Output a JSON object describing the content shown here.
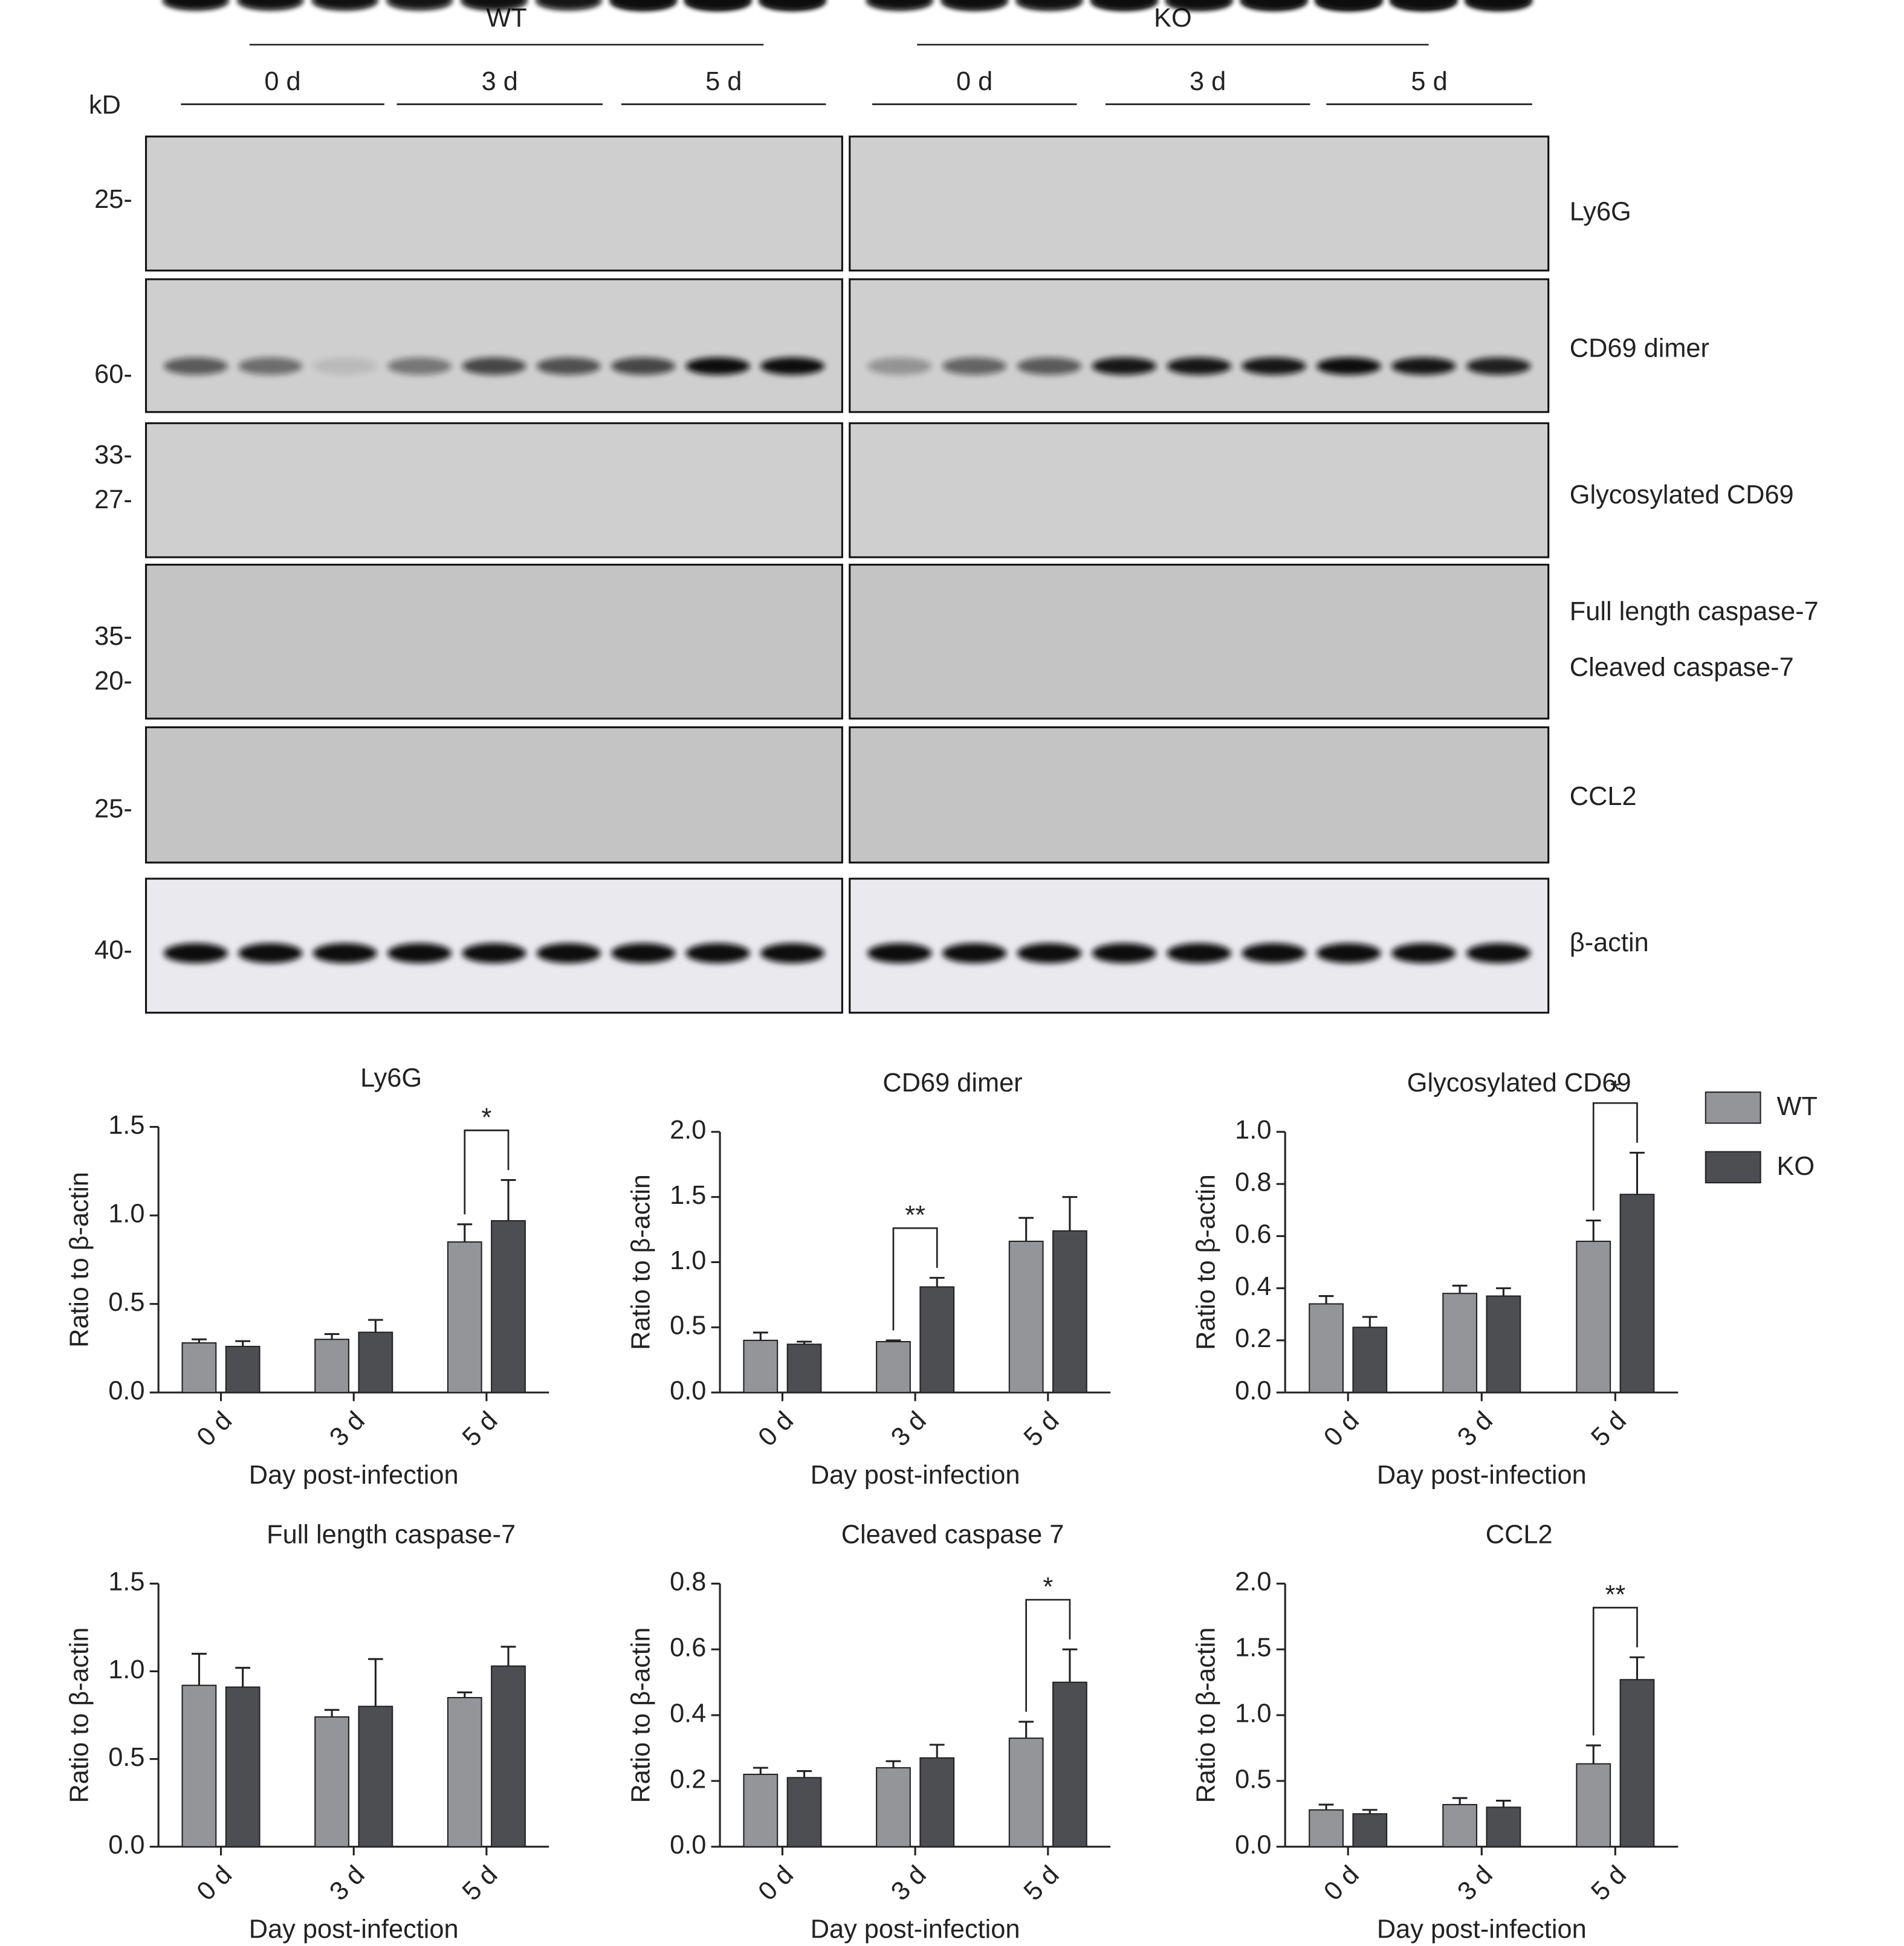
{
  "blot": {
    "unit": "kD",
    "groups": [
      {
        "label": "WT",
        "days": [
          "0 d",
          "3 d",
          "5 d"
        ]
      },
      {
        "label": "KO",
        "days": [
          "0 d",
          "3 d",
          "5 d"
        ]
      }
    ],
    "rows": [
      {
        "proteins": [
          "Ly6G"
        ],
        "markers": [
          "25-"
        ]
      },
      {
        "proteins": [
          "CD69 dimer"
        ],
        "markers": [
          "60-"
        ]
      },
      {
        "proteins": [
          "Glycosylated CD69"
        ],
        "markers": [
          "33-",
          "27-"
        ]
      },
      {
        "proteins": [
          "Full length caspase-7",
          "Cleaved caspase-7"
        ],
        "markers": [
          "35-",
          "20-"
        ]
      },
      {
        "proteins": [
          "CCL2"
        ],
        "markers": [
          "25-"
        ]
      },
      {
        "proteins": [
          "β-actin"
        ],
        "markers": [
          "40-"
        ]
      }
    ]
  },
  "chart_data": [
    {
      "type": "bar",
      "title": "Ly6G",
      "xlabel": "Day post-infection",
      "ylabel": "Ratio to β-actin",
      "categories": [
        "0 d",
        "3 d",
        "5 d"
      ],
      "ylim": [
        0,
        1.5
      ],
      "yticks": [
        {
          "value": 0,
          "label": "0.0"
        },
        0.5,
        {
          "value": 1,
          "label": "1.0"
        },
        1.5
      ],
      "series": [
        {
          "name": "WT",
          "color": "#939598",
          "values": [
            0.28,
            0.3,
            0.85
          ],
          "errors": [
            0.02,
            0.03,
            0.1
          ]
        },
        {
          "name": "KO",
          "color": "#4d4e52",
          "values": [
            0.26,
            0.34,
            0.97
          ],
          "errors": [
            0.03,
            0.07,
            0.23
          ]
        }
      ],
      "significance": [
        {
          "label": "*",
          "category": "5 d"
        }
      ]
    },
    {
      "type": "bar",
      "title": "CD69 dimer",
      "xlabel": "Day post-infection",
      "ylabel": "Ratio to β-actin",
      "categories": [
        "0 d",
        "3 d",
        "5 d"
      ],
      "ylim": [
        0,
        2
      ],
      "yticks": [
        {
          "value": 0,
          "label": "0.0"
        },
        0.5,
        {
          "value": 1,
          "label": "1.0"
        },
        1.5,
        {
          "value": 2,
          "label": "2.0"
        }
      ],
      "series": [
        {
          "name": "WT",
          "color": "#939598",
          "values": [
            0.4,
            0.39,
            1.16
          ],
          "errors": [
            0.06,
            0.01,
            0.18
          ]
        },
        {
          "name": "KO",
          "color": "#4d4e52",
          "values": [
            0.37,
            0.81,
            1.24
          ],
          "errors": [
            0.02,
            0.07,
            0.26
          ]
        }
      ],
      "significance": [
        {
          "label": "**",
          "category": "3 d"
        }
      ]
    },
    {
      "type": "bar",
      "title": "Glycosylated CD69",
      "xlabel": "Day post-infection",
      "ylabel": "Ratio to β-actin",
      "categories": [
        "0 d",
        "3 d",
        "5 d"
      ],
      "ylim": [
        0,
        1
      ],
      "yticks": [
        {
          "value": 0,
          "label": "0.0"
        },
        0.2,
        0.4,
        0.6,
        0.8,
        {
          "value": 1,
          "label": "1.0"
        }
      ],
      "series": [
        {
          "name": "WT",
          "color": "#939598",
          "values": [
            0.34,
            0.38,
            0.58
          ],
          "errors": [
            0.03,
            0.03,
            0.08
          ]
        },
        {
          "name": "KO",
          "color": "#4d4e52",
          "values": [
            0.25,
            0.37,
            0.76
          ],
          "errors": [
            0.04,
            0.03,
            0.16
          ]
        }
      ],
      "significance": [
        {
          "label": "*",
          "category": "5 d"
        }
      ],
      "legend": true
    },
    {
      "type": "bar",
      "title": "Full length caspase-7",
      "xlabel": "Day post-infection",
      "ylabel": "Ratio to β-actin",
      "categories": [
        "0 d",
        "3 d",
        "5 d"
      ],
      "ylim": [
        0,
        1.5
      ],
      "yticks": [
        {
          "value": 0,
          "label": "0.0"
        },
        0.5,
        {
          "value": 1,
          "label": "1.0"
        },
        1.5
      ],
      "series": [
        {
          "name": "WT",
          "color": "#939598",
          "values": [
            0.92,
            0.74,
            0.85
          ],
          "errors": [
            0.18,
            0.04,
            0.03
          ]
        },
        {
          "name": "KO",
          "color": "#4d4e52",
          "values": [
            0.91,
            0.8,
            1.03
          ],
          "errors": [
            0.11,
            0.27,
            0.11
          ]
        }
      ],
      "significance": []
    },
    {
      "type": "bar",
      "title": "Cleaved caspase 7",
      "xlabel": "Day post-infection",
      "ylabel": "Ratio to β-actin",
      "categories": [
        "0 d",
        "3 d",
        "5 d"
      ],
      "ylim": [
        0,
        0.8
      ],
      "yticks": [
        {
          "value": 0,
          "label": "0.0"
        },
        0.2,
        0.4,
        0.6,
        0.8
      ],
      "series": [
        {
          "name": "WT",
          "color": "#939598",
          "values": [
            0.22,
            0.24,
            0.33
          ],
          "errors": [
            0.02,
            0.02,
            0.05
          ]
        },
        {
          "name": "KO",
          "color": "#4d4e52",
          "values": [
            0.21,
            0.27,
            0.5
          ],
          "errors": [
            0.02,
            0.04,
            0.1
          ]
        }
      ],
      "significance": [
        {
          "label": "*",
          "category": "5 d"
        }
      ]
    },
    {
      "type": "bar",
      "title": "CCL2",
      "xlabel": "Day post-infection",
      "ylabel": "Ratio to β-actin",
      "categories": [
        "0 d",
        "3 d",
        "5 d"
      ],
      "ylim": [
        0,
        2
      ],
      "yticks": [
        {
          "value": 0,
          "label": "0.0"
        },
        0.5,
        {
          "value": 1,
          "label": "1.0"
        },
        1.5,
        {
          "value": 2,
          "label": "2.0"
        }
      ],
      "series": [
        {
          "name": "WT",
          "color": "#939598",
          "values": [
            0.28,
            0.32,
            0.63
          ],
          "errors": [
            0.04,
            0.05,
            0.14
          ]
        },
        {
          "name": "KO",
          "color": "#4d4e52",
          "values": [
            0.25,
            0.3,
            1.27
          ],
          "errors": [
            0.03,
            0.05,
            0.17
          ]
        }
      ],
      "significance": [
        {
          "label": "**",
          "category": "5 d"
        }
      ]
    }
  ]
}
